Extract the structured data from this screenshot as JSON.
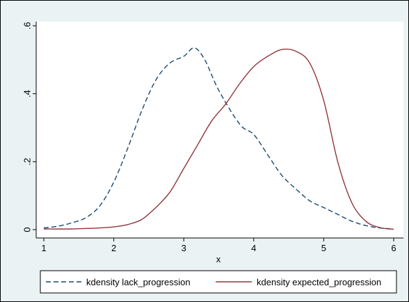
{
  "chart_data": {
    "type": "line",
    "title": "",
    "xlabel": "x",
    "ylabel": "",
    "xlim": [
      1,
      6
    ],
    "ylim": [
      0,
      0.6
    ],
    "x_ticks": [
      1,
      2,
      3,
      4,
      5,
      6
    ],
    "x_tick_labels": [
      "1",
      "2",
      "3",
      "4",
      "5",
      "6"
    ],
    "y_ticks": [
      0,
      0.2,
      0.4,
      0.6
    ],
    "y_tick_labels": [
      "0",
      ".2",
      ".4",
      ".6"
    ],
    "grid": false,
    "legend_position": "bottom",
    "series": [
      {
        "name": "kdensity lack_progression",
        "color": "#1a476f",
        "style": "dashed",
        "x": [
          1,
          1.2,
          1.4,
          1.6,
          1.8,
          2,
          2.2,
          2.4,
          2.6,
          2.8,
          3,
          3.15,
          3.3,
          3.5,
          3.8,
          4,
          4.2,
          4.4,
          4.6,
          4.8,
          5,
          5.2,
          5.4,
          5.6,
          5.8,
          6
        ],
        "y": [
          0.005,
          0.01,
          0.02,
          0.035,
          0.07,
          0.14,
          0.24,
          0.35,
          0.44,
          0.49,
          0.51,
          0.535,
          0.5,
          0.41,
          0.31,
          0.28,
          0.22,
          0.16,
          0.12,
          0.085,
          0.065,
          0.045,
          0.025,
          0.012,
          0.005,
          0.002
        ]
      },
      {
        "name": "kdensity expected_progression",
        "color": "#90353b",
        "style": "solid",
        "x": [
          1,
          1.4,
          1.8,
          2,
          2.2,
          2.4,
          2.6,
          2.8,
          3,
          3.2,
          3.4,
          3.6,
          3.8,
          4,
          4.2,
          4.4,
          4.6,
          4.8,
          5,
          5.2,
          5.4,
          5.6,
          5.8,
          6
        ],
        "y": [
          0.002,
          0.002,
          0.005,
          0.008,
          0.015,
          0.03,
          0.065,
          0.11,
          0.18,
          0.25,
          0.32,
          0.37,
          0.43,
          0.48,
          0.51,
          0.53,
          0.525,
          0.49,
          0.38,
          0.2,
          0.08,
          0.025,
          0.006,
          0.001
        ]
      }
    ]
  }
}
